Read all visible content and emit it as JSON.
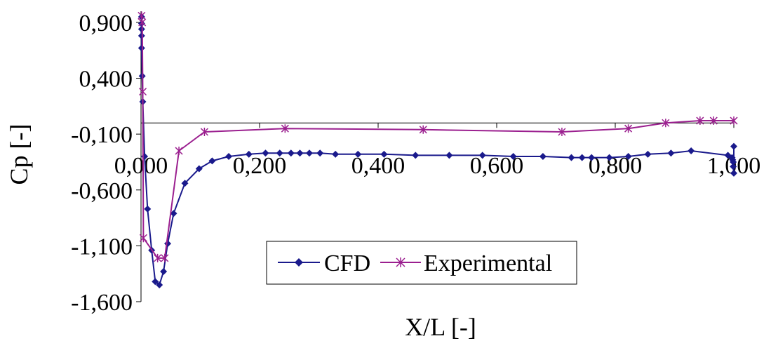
{
  "chart_data": {
    "type": "line",
    "title": "",
    "xlabel": "X/L [-]",
    "ylabel": "Cp [-]",
    "xlim": [
      0,
      1
    ],
    "ylim": [
      -1.6,
      1.0
    ],
    "x_ticks": [
      "0,000",
      "0,200",
      "0,400",
      "0,600",
      "0,800",
      "1,000"
    ],
    "y_ticks": [
      "0,900",
      "0,400",
      "-0,100",
      "-0,600",
      "-1,100",
      "-1,600"
    ],
    "x_tick_values": [
      0,
      0.2,
      0.4,
      0.6,
      0.8,
      1.0
    ],
    "y_tick_values": [
      0.9,
      0.4,
      -0.1,
      -0.6,
      -1.1,
      -1.6
    ],
    "grid": false,
    "legend_position": "bottom-center",
    "series": [
      {
        "name": "CFD",
        "color": "#1a1a8c",
        "marker": "diamond",
        "points": [
          [
            0.001,
            0.95
          ],
          [
            0.001,
            0.89
          ],
          [
            0.001,
            0.84
          ],
          [
            0.001,
            0.78
          ],
          [
            0.001,
            0.67
          ],
          [
            0.002,
            0.42
          ],
          [
            0.003,
            0.19
          ],
          [
            0.006,
            -0.3
          ],
          [
            0.011,
            -0.77
          ],
          [
            0.018,
            -1.14
          ],
          [
            0.024,
            -1.42
          ],
          [
            0.031,
            -1.45
          ],
          [
            0.038,
            -1.33
          ],
          [
            0.045,
            -1.08
          ],
          [
            0.055,
            -0.81
          ],
          [
            0.074,
            -0.54
          ],
          [
            0.098,
            -0.41
          ],
          [
            0.12,
            -0.34
          ],
          [
            0.148,
            -0.3
          ],
          [
            0.182,
            -0.28
          ],
          [
            0.21,
            -0.27
          ],
          [
            0.234,
            -0.27
          ],
          [
            0.253,
            -0.27
          ],
          [
            0.268,
            -0.27
          ],
          [
            0.284,
            -0.27
          ],
          [
            0.302,
            -0.27
          ],
          [
            0.328,
            -0.28
          ],
          [
            0.366,
            -0.28
          ],
          [
            0.41,
            -0.28
          ],
          [
            0.463,
            -0.29
          ],
          [
            0.52,
            -0.29
          ],
          [
            0.576,
            -0.29
          ],
          [
            0.628,
            -0.3
          ],
          [
            0.678,
            -0.3
          ],
          [
            0.726,
            -0.31
          ],
          [
            0.744,
            -0.31
          ],
          [
            0.76,
            -0.31
          ],
          [
            0.79,
            -0.31
          ],
          [
            0.822,
            -0.3
          ],
          [
            0.855,
            -0.28
          ],
          [
            0.894,
            -0.27
          ],
          [
            0.928,
            -0.25
          ],
          [
            0.99,
            -0.29
          ],
          [
            0.997,
            -0.31
          ],
          [
            0.998,
            -0.33
          ],
          [
            0.999,
            -0.35
          ],
          [
            0.999,
            -0.39
          ],
          [
            1.0,
            -0.45
          ],
          [
            1.0,
            -0.21
          ]
        ]
      },
      {
        "name": "Experimental",
        "color": "#9b1f8f",
        "marker": "star",
        "points": [
          [
            0.001,
            0.96
          ],
          [
            0.002,
            0.9
          ],
          [
            0.003,
            0.28
          ],
          [
            0.004,
            -1.03
          ],
          [
            0.028,
            -1.21
          ],
          [
            0.04,
            -1.21
          ],
          [
            0.064,
            -0.25
          ],
          [
            0.107,
            -0.08
          ],
          [
            0.243,
            -0.05
          ],
          [
            0.476,
            -0.06
          ],
          [
            0.71,
            -0.08
          ],
          [
            0.822,
            -0.05
          ],
          [
            0.885,
            0.0
          ],
          [
            0.943,
            0.02
          ],
          [
            0.966,
            0.02
          ],
          [
            1.0,
            0.02
          ]
        ]
      }
    ]
  }
}
